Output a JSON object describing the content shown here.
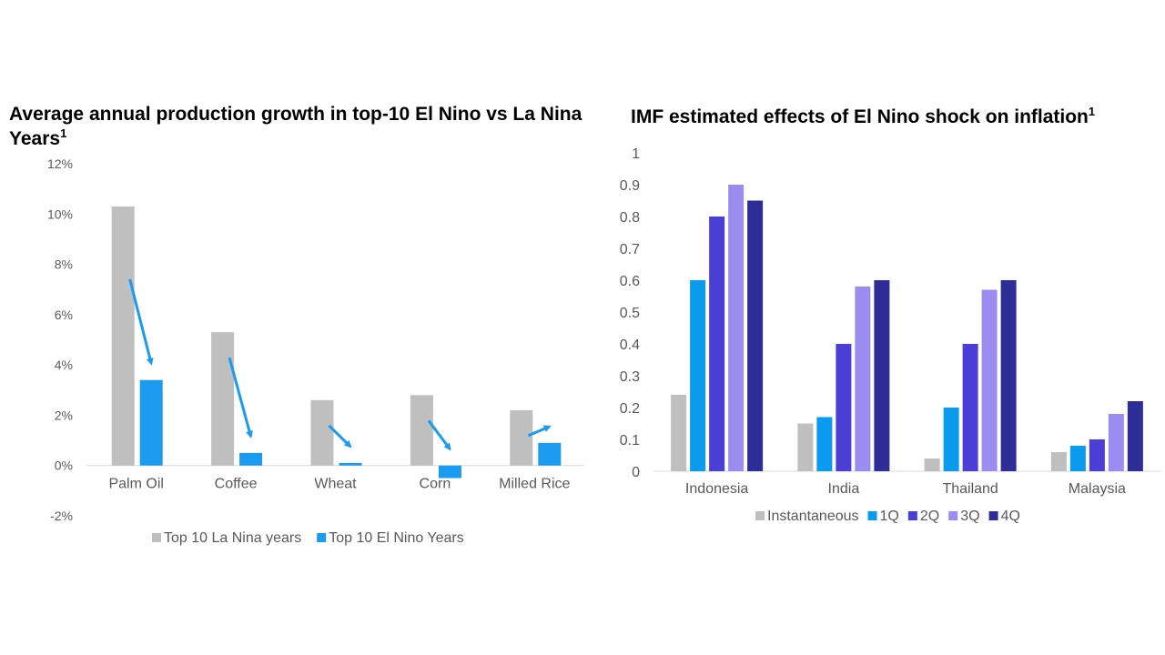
{
  "left_title": {
    "text": "Average annual production growth in top-10 El Nino vs La Nina Years",
    "sup": "1"
  },
  "right_title": {
    "text": "IMF estimated effects of El Nino shock on inflation",
    "sup": "1"
  },
  "chart_data": [
    {
      "type": "bar",
      "categories": [
        "Palm Oil",
        "Coffee",
        "Wheat",
        "Corn",
        "Milled Rice"
      ],
      "series": [
        {
          "name": "Top 10 La Nina years",
          "color": "#bfbfbf",
          "values": [
            10.3,
            5.3,
            2.6,
            2.8,
            2.2
          ]
        },
        {
          "name": "Top 10 El Nino Years",
          "color": "#1a9bef",
          "values": [
            3.4,
            0.5,
            0.1,
            -0.5,
            0.9
          ]
        }
      ],
      "ylim": [
        -2,
        12
      ],
      "yticks": [
        12,
        10,
        8,
        6,
        4,
        2,
        0,
        -2
      ],
      "ytick_labels": [
        "12%",
        "10%",
        "8%",
        "6%",
        "4%",
        "2%",
        "0%",
        "-2%"
      ],
      "annotation": "arrows from La Nina to El Nino bars",
      "legend": "bottom",
      "grid": false
    },
    {
      "type": "bar",
      "categories": [
        "Indonesia",
        "India",
        "Thailand",
        "Malaysia"
      ],
      "series": [
        {
          "name": "Instantaneous",
          "color": "#bfbfbf",
          "values": [
            0.24,
            0.15,
            0.04,
            0.06
          ]
        },
        {
          "name": "1Q",
          "color": "#0a9bef",
          "values": [
            0.6,
            0.17,
            0.2,
            0.08
          ]
        },
        {
          "name": "2Q",
          "color": "#4a3ed6",
          "values": [
            0.8,
            0.4,
            0.4,
            0.1
          ]
        },
        {
          "name": "3Q",
          "color": "#9b8cf2",
          "values": [
            0.9,
            0.58,
            0.57,
            0.18
          ]
        },
        {
          "name": "4Q",
          "color": "#2e2c96",
          "values": [
            0.85,
            0.6,
            0.6,
            0.22
          ]
        }
      ],
      "ylim": [
        0,
        1
      ],
      "yticks": [
        1,
        0.9,
        0.8,
        0.7,
        0.6,
        0.5,
        0.4,
        0.3,
        0.2,
        0.1,
        0
      ],
      "ytick_labels": [
        "1",
        "0.9",
        "0.8",
        "0.7",
        "0.6",
        "0.5",
        "0.4",
        "0.3",
        "0.2",
        "0.1",
        "0"
      ],
      "legend": "bottom",
      "grid": false
    }
  ]
}
